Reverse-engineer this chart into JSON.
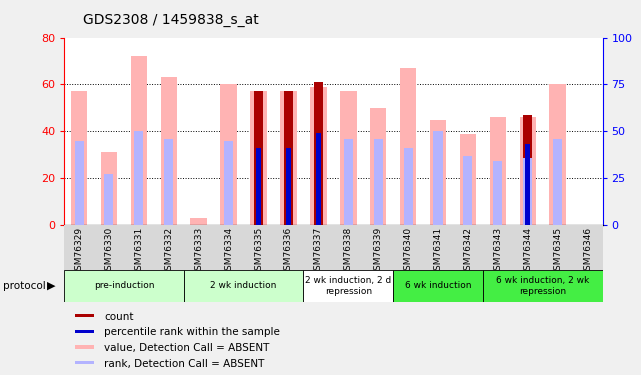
{
  "title": "GDS2308 / 1459838_s_at",
  "samples": [
    "GSM76329",
    "GSM76330",
    "GSM76331",
    "GSM76332",
    "GSM76333",
    "GSM76334",
    "GSM76335",
    "GSM76336",
    "GSM76337",
    "GSM76338",
    "GSM76339",
    "GSM76340",
    "GSM76341",
    "GSM76342",
    "GSM76343",
    "GSM76344",
    "GSM76345",
    "GSM76346"
  ],
  "value_absent": [
    57,
    31,
    72,
    63,
    3,
    60,
    57,
    57,
    59,
    57,
    50,
    67,
    45,
    39,
    46,
    46,
    60,
    null
  ],
  "rank_absent": [
    45,
    27,
    50,
    46,
    null,
    45,
    null,
    null,
    null,
    46,
    46,
    41,
    50,
    37,
    34,
    36,
    46,
    null
  ],
  "count": [
    null,
    null,
    null,
    null,
    null,
    null,
    57,
    57,
    61,
    null,
    null,
    null,
    null,
    null,
    null,
    47,
    null,
    null
  ],
  "percentile": [
    null,
    null,
    null,
    null,
    null,
    null,
    41,
    41,
    49,
    null,
    null,
    null,
    null,
    null,
    null,
    43,
    null,
    null
  ],
  "protocol_groups": [
    {
      "label": "pre-induction",
      "start": 0,
      "end": 3,
      "color": "#ccffcc"
    },
    {
      "label": "2 wk induction",
      "start": 4,
      "end": 7,
      "color": "#ccffcc"
    },
    {
      "label": "2 wk induction, 2 d\nrepression",
      "start": 8,
      "end": 10,
      "color": "#ffffff"
    },
    {
      "label": "6 wk induction",
      "start": 11,
      "end": 13,
      "color": "#44ee44"
    },
    {
      "label": "6 wk induction, 2 wk\nrepression",
      "start": 14,
      "end": 17,
      "color": "#44ee44"
    }
  ],
  "ylim_left": [
    0,
    80
  ],
  "ylim_right": [
    0,
    100
  ],
  "yticks_left": [
    0,
    20,
    40,
    60,
    80
  ],
  "yticks_right": [
    0,
    25,
    50,
    75,
    100
  ],
  "color_value_absent": "#ffb3b3",
  "color_rank_absent": "#b3b3ff",
  "color_count": "#aa0000",
  "color_percentile": "#0000cc",
  "bg_color": "#f0f0f0",
  "plot_bg": "#ffffff",
  "legend_items": [
    {
      "color": "#aa0000",
      "label": "count"
    },
    {
      "color": "#0000cc",
      "label": "percentile rank within the sample"
    },
    {
      "color": "#ffb3b3",
      "label": "value, Detection Call = ABSENT"
    },
    {
      "color": "#b3b3ff",
      "label": "rank, Detection Call = ABSENT"
    }
  ]
}
